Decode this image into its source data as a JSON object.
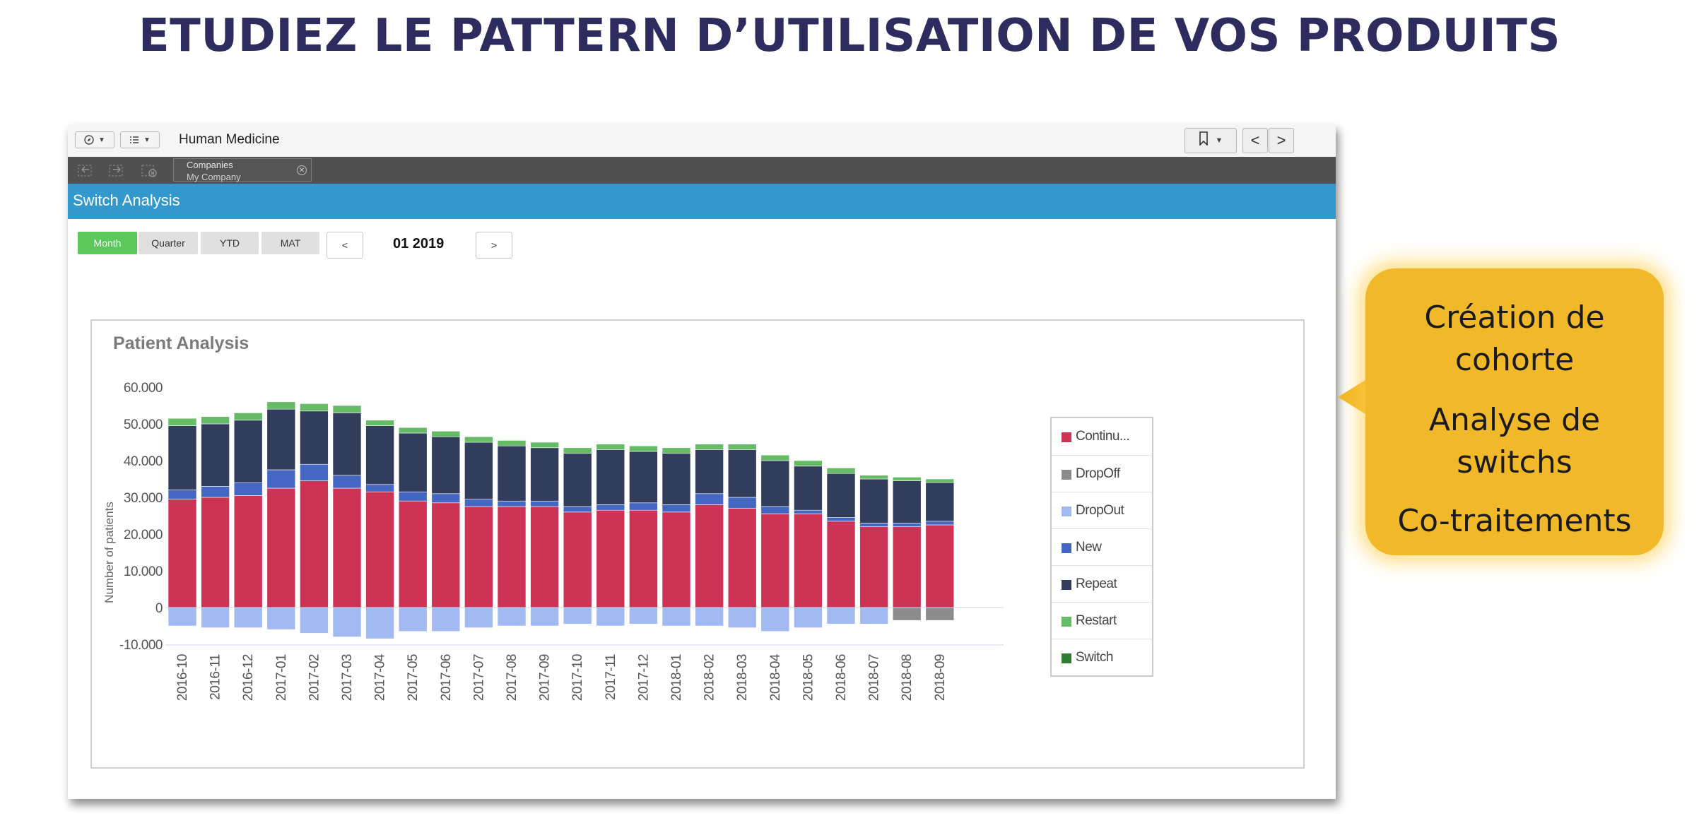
{
  "slide": {
    "title": "ETUDIEZ LE PATTERN D’UTILISATION DE VOS PRODUITS"
  },
  "app": {
    "title": "Human Medicine",
    "nav_prev": "<",
    "nav_next": ">",
    "filter": {
      "label": "Companies",
      "value": "My Company"
    },
    "header": "Switch Analysis"
  },
  "period": {
    "buttons": [
      "Month",
      "Quarter",
      "YTD",
      "MAT"
    ],
    "active": "Month",
    "prev": "<",
    "next": ">",
    "current": "01 2019"
  },
  "panel": {
    "title": "Patient Analysis"
  },
  "chart_data": {
    "type": "bar",
    "stacked": true,
    "ylabel": "Number of patients",
    "ylim": [
      -10000,
      60000
    ],
    "yticks": [
      60000,
      50000,
      40000,
      30000,
      20000,
      10000,
      0,
      -10000
    ],
    "ytick_labels": [
      "60.000",
      "50.000",
      "40.000",
      "30.000",
      "20.000",
      "10.000",
      "0",
      "-10.000"
    ],
    "grid": false,
    "legend_position": "right",
    "categories": [
      "2016-10",
      "2016-11",
      "2016-12",
      "2017-01",
      "2017-02",
      "2017-03",
      "2017-04",
      "2017-05",
      "2017-06",
      "2017-07",
      "2017-08",
      "2017-09",
      "2017-10",
      "2017-11",
      "2017-12",
      "2018-01",
      "2018-02",
      "2018-03",
      "2018-04",
      "2018-05",
      "2018-06",
      "2018-07",
      "2018-08",
      "2018-09"
    ],
    "series": [
      {
        "name": "Continu...",
        "color": "#cc3355",
        "values": [
          29500,
          30000,
          30500,
          32500,
          34500,
          32500,
          31500,
          29000,
          28500,
          27500,
          27500,
          27500,
          26000,
          26500,
          26500,
          26000,
          28000,
          27000,
          25500,
          25500,
          23500,
          22000,
          22000,
          22500
        ]
      },
      {
        "name": "DropOff",
        "color": "#8c8c8c",
        "values": [
          0,
          0,
          0,
          0,
          0,
          0,
          0,
          0,
          0,
          0,
          0,
          0,
          0,
          0,
          0,
          0,
          0,
          0,
          0,
          0,
          0,
          0,
          -3500,
          -3500
        ]
      },
      {
        "name": "DropOut",
        "color": "#a3b9f2",
        "values": [
          -5000,
          -5500,
          -5500,
          -6000,
          -7000,
          -8000,
          -8500,
          -6500,
          -6500,
          -5500,
          -5000,
          -5000,
          -4500,
          -5000,
          -4500,
          -5000,
          -5000,
          -5500,
          -6500,
          -5500,
          -4500,
          -4500,
          0,
          0
        ]
      },
      {
        "name": "New",
        "color": "#4467c4",
        "values": [
          2500,
          3000,
          3500,
          5000,
          4500,
          3500,
          2000,
          2500,
          2500,
          2000,
          1500,
          1500,
          1500,
          1500,
          2000,
          2000,
          3000,
          3000,
          2000,
          1000,
          1000,
          1000,
          1000,
          1000
        ]
      },
      {
        "name": "Repeat",
        "color": "#323d5c",
        "values": [
          17500,
          17000,
          17000,
          16500,
          14500,
          17000,
          16000,
          16000,
          15500,
          15500,
          15000,
          14500,
          14500,
          15000,
          14000,
          14000,
          12000,
          13000,
          12500,
          12000,
          12000,
          12000,
          11500,
          10500
        ]
      },
      {
        "name": "Restart",
        "color": "#66bb66",
        "values": [
          2000,
          2000,
          2000,
          2000,
          2000,
          2000,
          1500,
          1500,
          1500,
          1500,
          1500,
          1500,
          1500,
          1500,
          1500,
          1500,
          1500,
          1500,
          1500,
          1500,
          1500,
          1000,
          1000,
          1000
        ]
      },
      {
        "name": "Switch",
        "color": "#2e7d32",
        "values": [
          0,
          0,
          0,
          0,
          0,
          0,
          0,
          0,
          0,
          0,
          0,
          0,
          0,
          0,
          0,
          0,
          0,
          0,
          0,
          0,
          0,
          0,
          0,
          0
        ]
      }
    ]
  },
  "callout": {
    "items": [
      "Création de\ncohorte",
      "Analyse de\nswitchs",
      "Co-traitements"
    ]
  }
}
